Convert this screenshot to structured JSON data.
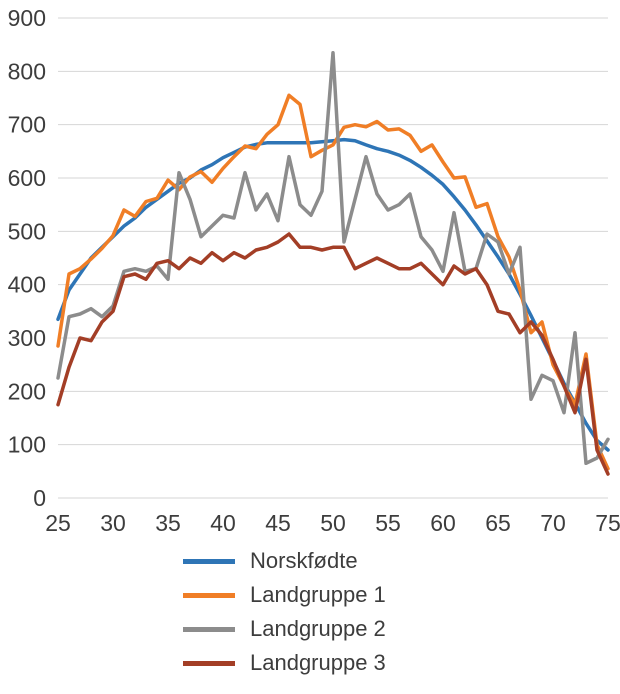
{
  "figure": {
    "background": "#ffffff",
    "tick_label_color": "#3d3d3d",
    "gridline_color": "#d6d6d6"
  },
  "chart_data": {
    "type": "line",
    "title": "",
    "xlabel": "",
    "ylabel": "",
    "xlim": [
      25,
      75
    ],
    "ylim": [
      0,
      900
    ],
    "xticks": [
      25,
      30,
      35,
      40,
      45,
      50,
      55,
      60,
      65,
      70,
      75
    ],
    "yticks": [
      0,
      100,
      200,
      300,
      400,
      500,
      600,
      700,
      800,
      900
    ],
    "grid": "horizontal",
    "legend_position": "bottom-left",
    "x_start": 25,
    "x_step": 1,
    "series": [
      {
        "name": "Norskfødte",
        "color": "#2E75B6",
        "values": [
          335,
          390,
          420,
          450,
          470,
          490,
          510,
          525,
          545,
          560,
          575,
          590,
          600,
          615,
          625,
          638,
          648,
          658,
          663,
          666,
          666,
          666,
          666,
          666,
          668,
          670,
          672,
          670,
          662,
          655,
          650,
          643,
          633,
          620,
          605,
          588,
          565,
          540,
          512,
          482,
          452,
          420,
          382,
          342,
          300,
          258,
          215,
          178,
          140,
          108,
          90
        ]
      },
      {
        "name": "Landgruppe 1",
        "color": "#F07E26",
        "values": [
          285,
          420,
          430,
          448,
          468,
          492,
          540,
          528,
          556,
          562,
          596,
          578,
          602,
          612,
          592,
          618,
          640,
          660,
          655,
          682,
          700,
          755,
          738,
          640,
          652,
          662,
          695,
          700,
          696,
          706,
          690,
          692,
          680,
          650,
          662,
          630,
          600,
          602,
          545,
          552,
          490,
          452,
          390,
          310,
          330,
          250,
          210,
          175,
          270,
          100,
          55
        ]
      },
      {
        "name": "Landgruppe 2",
        "color": "#8C8C8C",
        "values": [
          225,
          340,
          345,
          355,
          340,
          360,
          425,
          430,
          425,
          435,
          410,
          610,
          560,
          490,
          510,
          530,
          525,
          610,
          540,
          570,
          520,
          640,
          550,
          530,
          575,
          835,
          480,
          560,
          640,
          570,
          540,
          550,
          570,
          490,
          465,
          425,
          535,
          425,
          430,
          495,
          480,
          420,
          470,
          185,
          230,
          220,
          160,
          310,
          65,
          75,
          110
        ]
      },
      {
        "name": "Landgruppe 3",
        "color": "#A33E26",
        "values": [
          175,
          245,
          300,
          295,
          330,
          350,
          415,
          420,
          410,
          440,
          445,
          430,
          450,
          440,
          460,
          445,
          460,
          450,
          465,
          470,
          480,
          495,
          470,
          470,
          465,
          470,
          470,
          430,
          440,
          450,
          440,
          430,
          430,
          440,
          420,
          400,
          435,
          420,
          430,
          400,
          350,
          345,
          310,
          330,
          305,
          260,
          210,
          160,
          260,
          90,
          45
        ]
      }
    ]
  }
}
